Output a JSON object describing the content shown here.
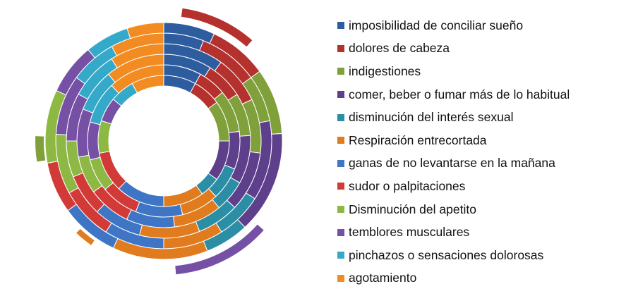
{
  "chart_data": {
    "type": "pie",
    "variant": "multi-ring doughnut (exploded segments)",
    "title": "",
    "legend_position": "right",
    "categories": [
      "imposibilidad de conciliar sueño",
      "dolores de cabeza",
      "indigestiones",
      " comer, beber o fumar más de lo habitual",
      "disminución del interés sexual",
      "Respiración entrecortada",
      "ganas de no levantarse en la mañana",
      " sudor o palpitaciones",
      "Disminución del apetito",
      "temblores musculares",
      "pinchazos o sensaciones dolorosas",
      "agotamiento"
    ],
    "colors": [
      "#2E5D9F",
      "#B5312E",
      "#7FA03A",
      "#5E3F8C",
      "#2C8EA5",
      "#E07B1E",
      "#3F75C5",
      "#D13A37",
      "#8DB844",
      "#7550A5",
      "#35A9C9",
      "#F28C22"
    ],
    "series": [
      {
        "values": [
          8,
          7,
          10,
          10,
          5,
          10,
          12,
          10,
          8,
          6,
          6,
          8
        ]
      },
      {
        "values": [
          8,
          6,
          9,
          8,
          7,
          8,
          10,
          8,
          7,
          8,
          9,
          12
        ]
      },
      {
        "values": [
          9,
          7,
          8,
          9,
          6,
          9,
          9,
          8,
          7,
          9,
          8,
          11
        ]
      },
      {
        "values": [
          10,
          8,
          9,
          10,
          7,
          10,
          8,
          7,
          6,
          8,
          8,
          9
        ]
      },
      {
        "values": [
          6,
          9,
          7,
          12,
          7,
          9,
          9,
          8,
          9,
          9,
          7,
          8
        ]
      },
      {
        "values": [
          7,
          8,
          9,
          14,
          6,
          13,
          8,
          7,
          10,
          7,
          6,
          5
        ]
      }
    ]
  }
}
